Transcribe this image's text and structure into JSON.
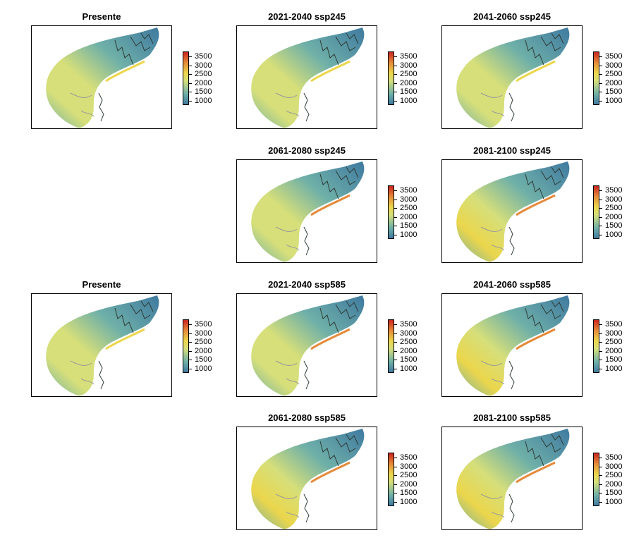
{
  "colors": {
    "low": "#3f7aa0",
    "mid_low": "#6fb0a8",
    "mid": "#d6df7a",
    "high_mid": "#ebd64c",
    "high": "#e58a3a",
    "max": "#c9261f",
    "boundary": "#2e3b36",
    "grey_boundary": "#9a9a9a"
  },
  "legend": {
    "ticks": [
      "3500",
      "3000",
      "2500",
      "2000",
      "1500",
      "1000"
    ]
  },
  "panels": [
    {
      "title": "Presente",
      "scenario": "present",
      "level": 0.35
    },
    {
      "title": "2021-2040 ssp245",
      "scenario": "ssp245",
      "level": 0.35
    },
    {
      "title": "2041-2060 ssp245",
      "scenario": "ssp245",
      "level": 0.35
    },
    {
      "title": "2061-2080 ssp245",
      "scenario": "ssp245",
      "level": 0.45
    },
    {
      "title": "2081-2100 ssp245",
      "scenario": "ssp245",
      "level": 0.5
    },
    {
      "title": "Presente",
      "scenario": "present",
      "level": 0.4
    },
    {
      "title": "2021-2040 ssp585",
      "scenario": "ssp585",
      "level": 0.45
    },
    {
      "title": "2041-2060 ssp585",
      "scenario": "ssp585",
      "level": 0.5
    },
    {
      "title": "2061-2080 ssp585",
      "scenario": "ssp585",
      "level": 0.5
    },
    {
      "title": "2081-2100 ssp585",
      "scenario": "ssp585",
      "level": 0.55
    }
  ]
}
